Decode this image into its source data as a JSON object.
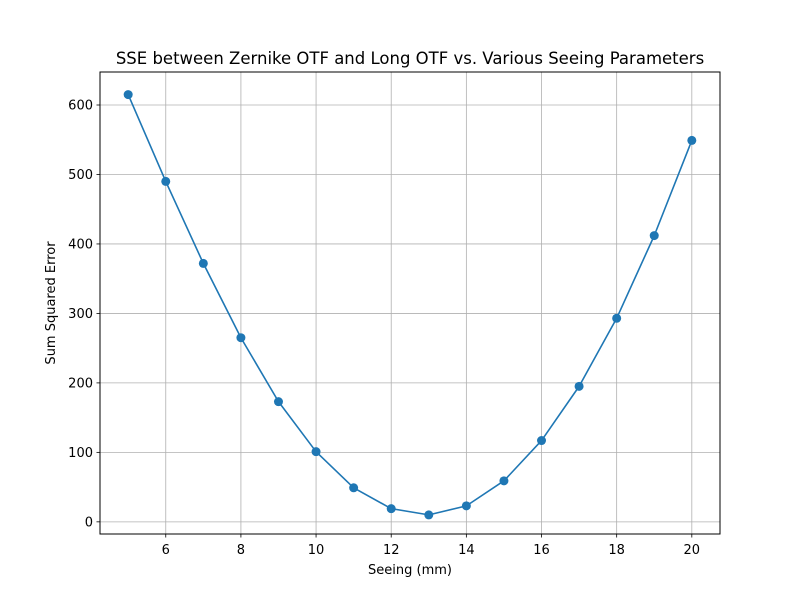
{
  "chart_data": {
    "type": "line",
    "title": "SSE between Zernike OTF and Long OTF vs. Various Seeing Parameters",
    "xlabel": "Seeing (mm)",
    "ylabel": "Sum Squared Error",
    "xlim": [
      4.25,
      20.75
    ],
    "ylim": [
      -17.5,
      647.5
    ],
    "xticks": [
      6,
      8,
      10,
      12,
      14,
      16,
      18,
      20
    ],
    "yticks": [
      0,
      100,
      200,
      300,
      400,
      500,
      600
    ],
    "grid": true,
    "marker": "circle",
    "series": [
      {
        "color": "#1f77b4",
        "x": [
          5,
          6,
          7,
          8,
          9,
          10,
          11,
          12,
          13,
          14,
          15,
          16,
          17,
          18,
          19,
          20
        ],
        "y": [
          615,
          490,
          372,
          265,
          173,
          101,
          49,
          19,
          10,
          23,
          59,
          117,
          195,
          293,
          412,
          549
        ]
      }
    ]
  }
}
